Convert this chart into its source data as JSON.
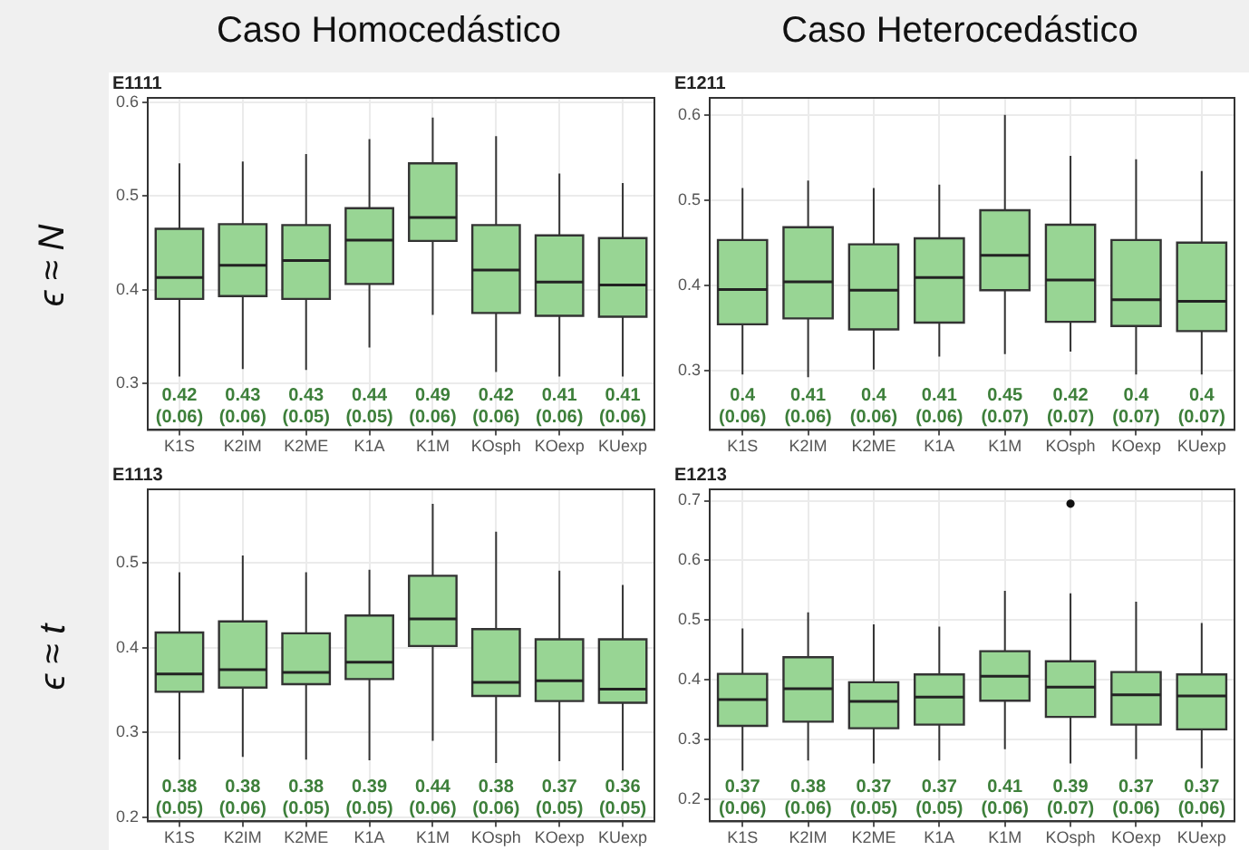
{
  "chart_data": [
    {
      "type": "box",
      "title": "E1111",
      "annotations": [
        "Caso Homocedástico",
        "ϵ ≈ N"
      ],
      "color": "#98d594",
      "grid": true,
      "ylim": [
        0.25,
        0.605
      ],
      "yticks": [
        0.3,
        0.4,
        0.5,
        0.6
      ],
      "categories": [
        "K1S",
        "K2IM",
        "K2ME",
        "K1A",
        "K1M",
        "KOsph",
        "KOexp",
        "KUexp"
      ],
      "boxes": [
        {
          "low": 0.307,
          "q1": 0.39,
          "median": 0.413,
          "q3": 0.465,
          "high": 0.535
        },
        {
          "low": 0.315,
          "q1": 0.393,
          "median": 0.426,
          "q3": 0.47,
          "high": 0.537
        },
        {
          "low": 0.314,
          "q1": 0.39,
          "median": 0.431,
          "q3": 0.469,
          "high": 0.545
        },
        {
          "low": 0.338,
          "q1": 0.406,
          "median": 0.453,
          "q3": 0.487,
          "high": 0.561
        },
        {
          "low": 0.373,
          "q1": 0.452,
          "median": 0.477,
          "q3": 0.535,
          "high": 0.584
        },
        {
          "low": 0.312,
          "q1": 0.375,
          "median": 0.421,
          "q3": 0.469,
          "high": 0.564
        },
        {
          "low": 0.307,
          "q1": 0.372,
          "median": 0.408,
          "q3": 0.458,
          "high": 0.524
        },
        {
          "low": 0.307,
          "q1": 0.371,
          "median": 0.405,
          "q3": 0.455,
          "high": 0.514
        }
      ],
      "value_labels": [
        "0.42\n(0.06)",
        "0.43\n(0.06)",
        "0.43\n(0.05)",
        "0.44\n(0.05)",
        "0.49\n(0.06)",
        "0.42\n(0.06)",
        "0.41\n(0.06)",
        "0.41\n(0.06)"
      ]
    },
    {
      "type": "box",
      "title": "E1211",
      "annotations": [
        "Caso Heterocedástico"
      ],
      "color": "#98d594",
      "grid": true,
      "ylim": [
        0.23,
        0.62
      ],
      "yticks": [
        0.3,
        0.4,
        0.5,
        0.6
      ],
      "categories": [
        "K1S",
        "K2IM",
        "K2ME",
        "K1A",
        "K1M",
        "KOsph",
        "KOexp",
        "KUexp"
      ],
      "boxes": [
        {
          "low": 0.295,
          "q1": 0.354,
          "median": 0.395,
          "q3": 0.453,
          "high": 0.514
        },
        {
          "low": 0.292,
          "q1": 0.361,
          "median": 0.404,
          "q3": 0.468,
          "high": 0.523
        },
        {
          "low": 0.301,
          "q1": 0.348,
          "median": 0.394,
          "q3": 0.448,
          "high": 0.514
        },
        {
          "low": 0.316,
          "q1": 0.356,
          "median": 0.409,
          "q3": 0.455,
          "high": 0.518
        },
        {
          "low": 0.319,
          "q1": 0.394,
          "median": 0.435,
          "q3": 0.488,
          "high": 0.6
        },
        {
          "low": 0.322,
          "q1": 0.357,
          "median": 0.406,
          "q3": 0.471,
          "high": 0.552
        },
        {
          "low": 0.295,
          "q1": 0.352,
          "median": 0.383,
          "q3": 0.453,
          "high": 0.548
        },
        {
          "low": 0.295,
          "q1": 0.346,
          "median": 0.381,
          "q3": 0.45,
          "high": 0.534
        }
      ],
      "value_labels": [
        "0.4\n(0.06)",
        "0.41\n(0.06)",
        "0.4\n(0.06)",
        "0.41\n(0.06)",
        "0.45\n(0.07)",
        "0.42\n(0.07)",
        "0.4\n(0.07)",
        "0.4\n(0.07)"
      ]
    },
    {
      "type": "box",
      "title": "E1113",
      "annotations": [
        "ϵ ≈ t"
      ],
      "color": "#98d594",
      "grid": true,
      "ylim": [
        0.195,
        0.587
      ],
      "yticks": [
        0.2,
        0.3,
        0.4,
        0.5
      ],
      "categories": [
        "K1S",
        "K2IM",
        "K2ME",
        "K1A",
        "K1M",
        "KOsph",
        "KOexp",
        "KUexp"
      ],
      "boxes": [
        {
          "low": 0.268,
          "q1": 0.348,
          "median": 0.369,
          "q3": 0.418,
          "high": 0.489
        },
        {
          "low": 0.271,
          "q1": 0.353,
          "median": 0.374,
          "q3": 0.431,
          "high": 0.509
        },
        {
          "low": 0.268,
          "q1": 0.357,
          "median": 0.371,
          "q3": 0.417,
          "high": 0.489
        },
        {
          "low": 0.267,
          "q1": 0.363,
          "median": 0.383,
          "q3": 0.438,
          "high": 0.492
        },
        {
          "low": 0.29,
          "q1": 0.402,
          "median": 0.434,
          "q3": 0.485,
          "high": 0.57
        },
        {
          "low": 0.264,
          "q1": 0.343,
          "median": 0.359,
          "q3": 0.422,
          "high": 0.537
        },
        {
          "low": 0.266,
          "q1": 0.337,
          "median": 0.361,
          "q3": 0.41,
          "high": 0.491
        },
        {
          "low": 0.255,
          "q1": 0.335,
          "median": 0.351,
          "q3": 0.41,
          "high": 0.474
        }
      ],
      "value_labels": [
        "0.38\n(0.05)",
        "0.38\n(0.06)",
        "0.38\n(0.05)",
        "0.39\n(0.05)",
        "0.44\n(0.06)",
        "0.38\n(0.06)",
        "0.37\n(0.05)",
        "0.36\n(0.05)"
      ]
    },
    {
      "type": "box",
      "title": "E1213",
      "color": "#98d594",
      "grid": true,
      "ylim": [
        0.163,
        0.719
      ],
      "yticks": [
        0.2,
        0.3,
        0.4,
        0.5,
        0.6,
        0.7
      ],
      "categories": [
        "K1S",
        "K2IM",
        "K2ME",
        "K1A",
        "K1M",
        "KOsph",
        "KOexp",
        "KUexp"
      ],
      "boxes": [
        {
          "low": 0.248,
          "q1": 0.323,
          "median": 0.367,
          "q3": 0.41,
          "high": 0.486
        },
        {
          "low": 0.265,
          "q1": 0.33,
          "median": 0.385,
          "q3": 0.438,
          "high": 0.513
        },
        {
          "low": 0.26,
          "q1": 0.319,
          "median": 0.364,
          "q3": 0.396,
          "high": 0.493
        },
        {
          "low": 0.265,
          "q1": 0.325,
          "median": 0.371,
          "q3": 0.409,
          "high": 0.489
        },
        {
          "low": 0.284,
          "q1": 0.365,
          "median": 0.406,
          "q3": 0.448,
          "high": 0.549
        },
        {
          "low": 0.26,
          "q1": 0.338,
          "median": 0.388,
          "q3": 0.431,
          "high": 0.545,
          "outliers": [
            0.695
          ]
        },
        {
          "low": 0.267,
          "q1": 0.325,
          "median": 0.375,
          "q3": 0.413,
          "high": 0.531
        },
        {
          "low": 0.252,
          "q1": 0.317,
          "median": 0.373,
          "q3": 0.409,
          "high": 0.495
        }
      ],
      "value_labels": [
        "0.37\n(0.06)",
        "0.38\n(0.06)",
        "0.37\n(0.05)",
        "0.37\n(0.05)",
        "0.41\n(0.06)",
        "0.39\n(0.07)",
        "0.37\n(0.06)",
        "0.37\n(0.06)"
      ]
    }
  ]
}
